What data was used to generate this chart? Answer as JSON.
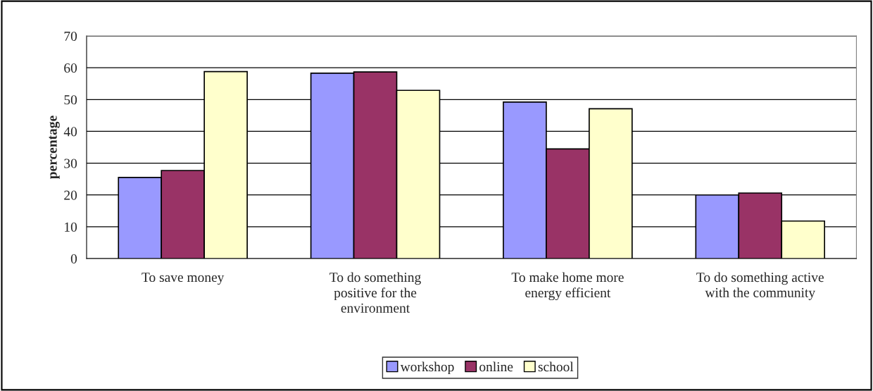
{
  "chart_data": {
    "type": "bar",
    "ylabel": "percentage",
    "categories": [
      "To save money",
      "To do something\npositive for the\nenvironment",
      "To make home more\nenergy efficient",
      "To do something active\nwith the community"
    ],
    "series": [
      {
        "name": "workshop",
        "color": "#9999ff",
        "values": [
          25.5,
          58.3,
          49.2,
          20.0
        ]
      },
      {
        "name": "online",
        "color": "#993366",
        "values": [
          27.7,
          58.7,
          34.5,
          20.6
        ]
      },
      {
        "name": "school",
        "color": "#ffffcc",
        "values": [
          58.8,
          52.9,
          47.1,
          11.8
        ]
      }
    ],
    "ylim": [
      0,
      70
    ],
    "yticks": [
      0,
      10,
      20,
      30,
      40,
      50,
      60,
      70
    ],
    "grid": "y",
    "legend": "bottom"
  }
}
